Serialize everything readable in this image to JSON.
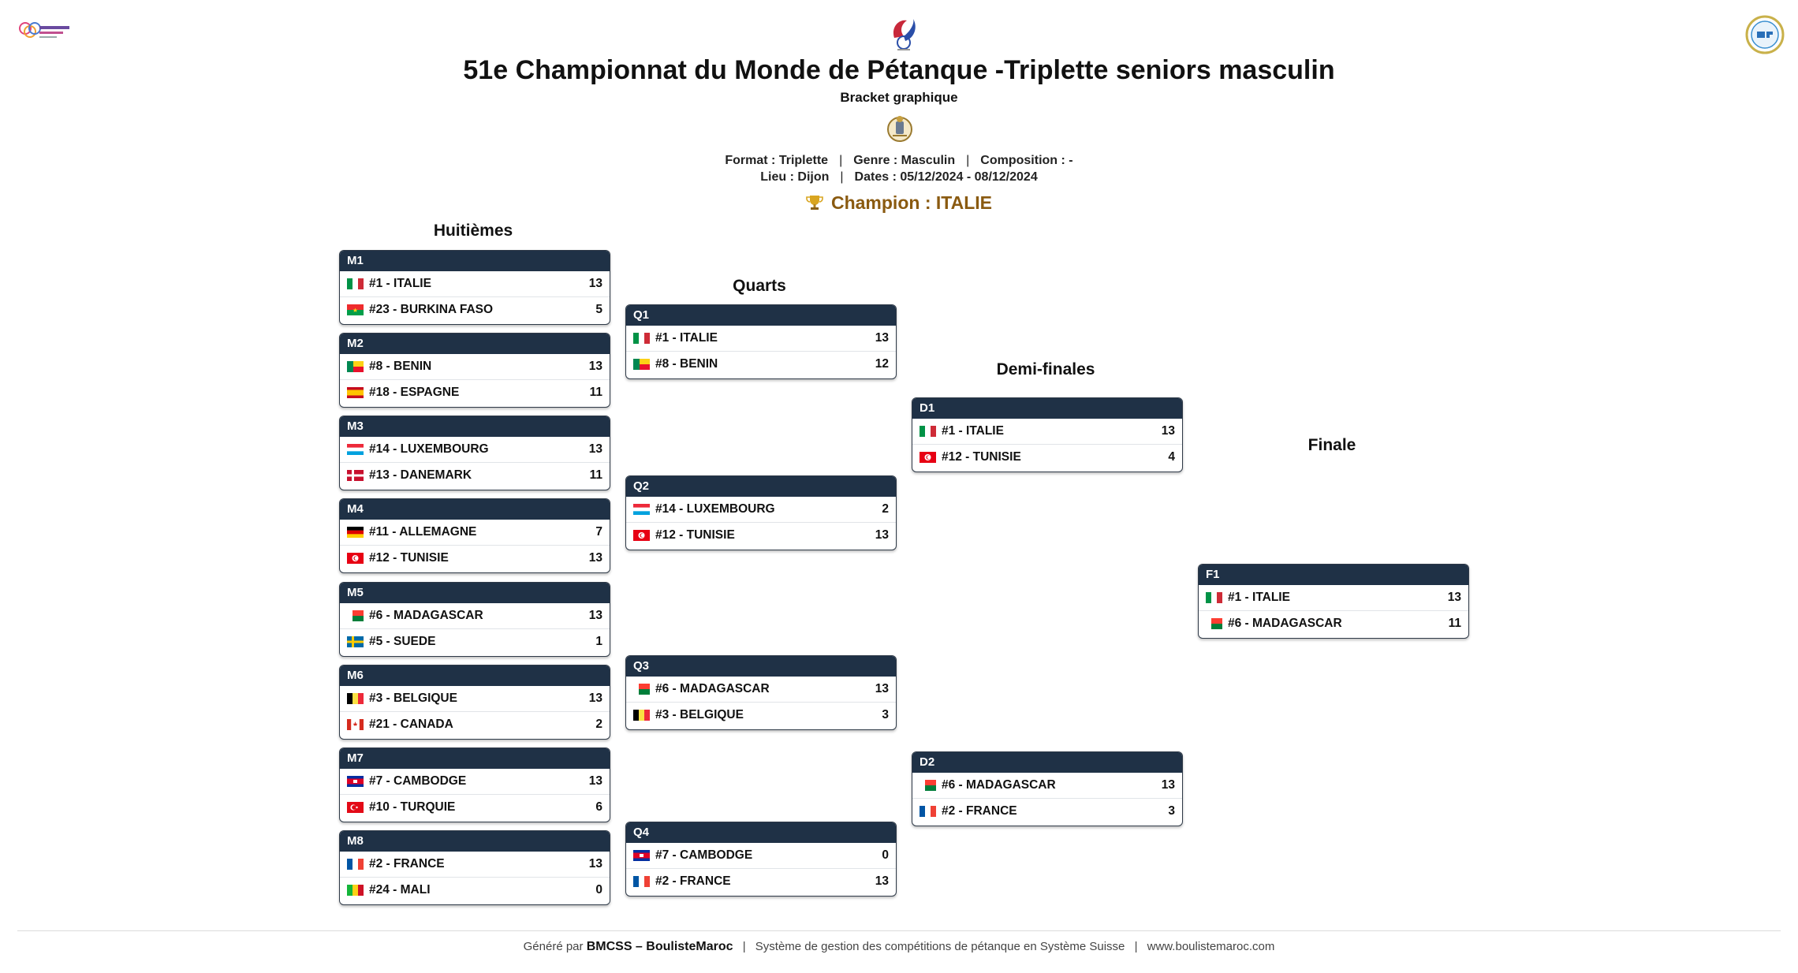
{
  "header": {
    "title": "51e Championnat du Monde de Pétanque -Triplette seniors masculin",
    "subtitle": "Bracket graphique",
    "meta_line1": [
      {
        "label": "Format : Triplette"
      },
      {
        "label": "Genre : Masculin"
      },
      {
        "label": "Composition : -"
      }
    ],
    "meta_line2": [
      {
        "label": "Lieu : Dijon"
      },
      {
        "label": "Dates : 05/12/2024 - 08/12/2024"
      }
    ],
    "separator": "|",
    "champion": "Champion : ITALIE"
  },
  "rounds": {
    "r16": "Huitièmes",
    "qf": "Quarts",
    "sf": "Demi-finales",
    "f": "Finale"
  },
  "matches": {
    "M1": {
      "label": "M1",
      "rows": [
        {
          "team": "#1 - ITALIE",
          "flag": "it",
          "score": "13"
        },
        {
          "team": "#23 - BURKINA FASO",
          "flag": "bf",
          "score": "5"
        }
      ]
    },
    "M2": {
      "label": "M2",
      "rows": [
        {
          "team": "#8 - BENIN",
          "flag": "bj",
          "score": "13"
        },
        {
          "team": "#18 - ESPAGNE",
          "flag": "es",
          "score": "11"
        }
      ]
    },
    "M3": {
      "label": "M3",
      "rows": [
        {
          "team": "#14 - LUXEMBOURG",
          "flag": "lu",
          "score": "13"
        },
        {
          "team": "#13 - DANEMARK",
          "flag": "dk",
          "score": "11"
        }
      ]
    },
    "M4": {
      "label": "M4",
      "rows": [
        {
          "team": "#11 - ALLEMAGNE",
          "flag": "de",
          "score": "7"
        },
        {
          "team": "#12 - TUNISIE",
          "flag": "tn",
          "score": "13"
        }
      ]
    },
    "M5": {
      "label": "M5",
      "rows": [
        {
          "team": "#6 - MADAGASCAR",
          "flag": "mg",
          "score": "13"
        },
        {
          "team": "#5 - SUEDE",
          "flag": "se",
          "score": "1"
        }
      ]
    },
    "M6": {
      "label": "M6",
      "rows": [
        {
          "team": "#3 - BELGIQUE",
          "flag": "be",
          "score": "13"
        },
        {
          "team": "#21 - CANADA",
          "flag": "ca",
          "score": "2"
        }
      ]
    },
    "M7": {
      "label": "M7",
      "rows": [
        {
          "team": "#7 - CAMBODGE",
          "flag": "kh",
          "score": "13"
        },
        {
          "team": "#10 - TURQUIE",
          "flag": "tr",
          "score": "6"
        }
      ]
    },
    "M8": {
      "label": "M8",
      "rows": [
        {
          "team": "#2 - FRANCE",
          "flag": "fr",
          "score": "13"
        },
        {
          "team": "#24 - MALI",
          "flag": "ml",
          "score": "0"
        }
      ]
    },
    "Q1": {
      "label": "Q1",
      "rows": [
        {
          "team": "#1 - ITALIE",
          "flag": "it",
          "score": "13"
        },
        {
          "team": "#8 - BENIN",
          "flag": "bj",
          "score": "12"
        }
      ]
    },
    "Q2": {
      "label": "Q2",
      "rows": [
        {
          "team": "#14 - LUXEMBOURG",
          "flag": "lu",
          "score": "2"
        },
        {
          "team": "#12 - TUNISIE",
          "flag": "tn",
          "score": "13"
        }
      ]
    },
    "Q3": {
      "label": "Q3",
      "rows": [
        {
          "team": "#6 - MADAGASCAR",
          "flag": "mg",
          "score": "13"
        },
        {
          "team": "#3 - BELGIQUE",
          "flag": "be",
          "score": "3"
        }
      ]
    },
    "Q4": {
      "label": "Q4",
      "rows": [
        {
          "team": "#7 - CAMBODGE",
          "flag": "kh",
          "score": "0"
        },
        {
          "team": "#2 - FRANCE",
          "flag": "fr",
          "score": "13"
        }
      ]
    },
    "D1": {
      "label": "D1",
      "rows": [
        {
          "team": "#1 - ITALIE",
          "flag": "it",
          "score": "13"
        },
        {
          "team": "#12 - TUNISIE",
          "flag": "tn",
          "score": "4"
        }
      ]
    },
    "D2": {
      "label": "D2",
      "rows": [
        {
          "team": "#6 - MADAGASCAR",
          "flag": "mg",
          "score": "13"
        },
        {
          "team": "#2 - FRANCE",
          "flag": "fr",
          "score": "3"
        }
      ]
    },
    "F1": {
      "label": "F1",
      "rows": [
        {
          "team": "#1 - ITALIE",
          "flag": "it",
          "score": "13"
        },
        {
          "team": "#6 - MADAGASCAR",
          "flag": "mg",
          "score": "11"
        }
      ]
    }
  },
  "footer": {
    "generated_prefix": "Généré par",
    "generator": "BMCSS – BoulisteMaroc",
    "separator": "|",
    "description": "Système de gestion des compétitions de pétanque en Système Suisse",
    "website": "www.boulistemaroc.com"
  },
  "colors": {
    "header_bar": "#1f3146",
    "champion": "#8a5a10"
  }
}
